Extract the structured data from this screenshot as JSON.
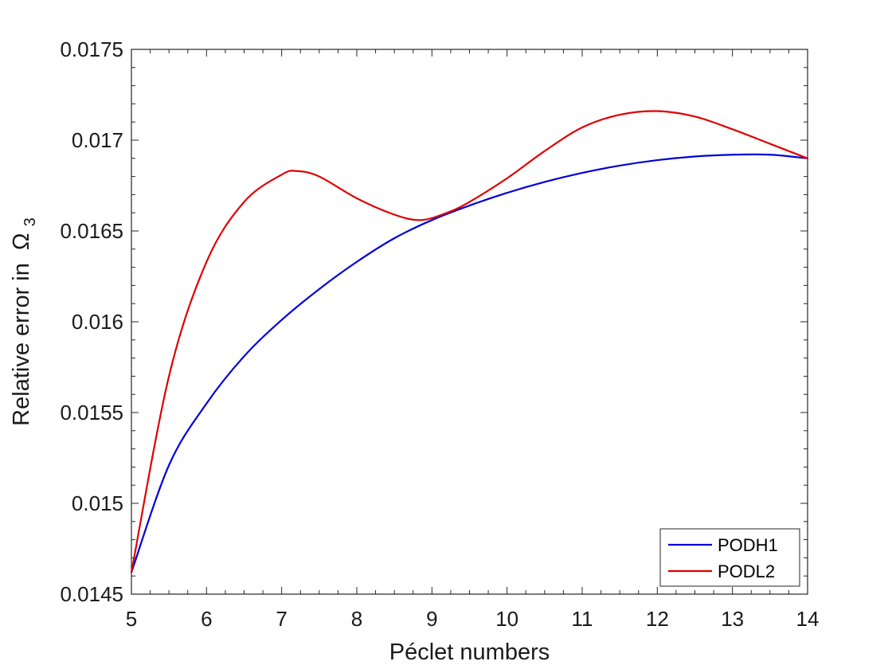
{
  "chart_data": {
    "type": "line",
    "xlabel": "Péclet numbers",
    "ylabel": "Relative error in",
    "ylabel_symbol": "Ω",
    "ylabel_subscript": "3",
    "xlim": [
      5,
      14
    ],
    "ylim": [
      0.0145,
      0.0175
    ],
    "xticks": [
      5,
      6,
      7,
      8,
      9,
      10,
      11,
      12,
      13,
      14
    ],
    "xtick_labels": [
      "5",
      "6",
      "7",
      "8",
      "9",
      "10",
      "11",
      "12",
      "13",
      "14"
    ],
    "yticks": [
      0.0145,
      0.015,
      0.0155,
      0.016,
      0.0165,
      0.017,
      0.0175
    ],
    "ytick_labels": [
      "0.0145",
      "0.015",
      "0.0155",
      "0.016",
      "0.0165",
      "0.017",
      "0.0175"
    ],
    "grid": false,
    "legend_position": "bottom-right",
    "series": [
      {
        "name": "PODH1",
        "color": "#0000d8",
        "x": [
          5,
          5.5,
          6,
          6.5,
          7,
          7.5,
          8,
          8.5,
          9,
          9.5,
          10,
          10.5,
          11,
          11.5,
          12,
          12.5,
          13,
          13.5,
          14
        ],
        "y": [
          0.01462,
          0.01521,
          0.01555,
          0.01581,
          0.01601,
          0.01618,
          0.01633,
          0.01646,
          0.01656,
          0.01664,
          0.01671,
          0.01677,
          0.01682,
          0.01686,
          0.01689,
          0.01691,
          0.01692,
          0.01692,
          0.0169
        ]
      },
      {
        "name": "PODL2",
        "color": "#e00000",
        "x": [
          5,
          5.5,
          6,
          6.5,
          7,
          7.2,
          7.5,
          8,
          8.5,
          8.85,
          9.2,
          9.5,
          10,
          10.5,
          11,
          11.5,
          12,
          12.5,
          13,
          13.5,
          14
        ],
        "y": [
          0.01462,
          0.0157,
          0.01633,
          0.01666,
          0.01681,
          0.01683,
          0.0168,
          0.01668,
          0.01659,
          0.01656,
          0.0166,
          0.01666,
          0.01679,
          0.01694,
          0.01707,
          0.01714,
          0.01716,
          0.01713,
          0.01706,
          0.01698,
          0.0169
        ]
      }
    ]
  }
}
